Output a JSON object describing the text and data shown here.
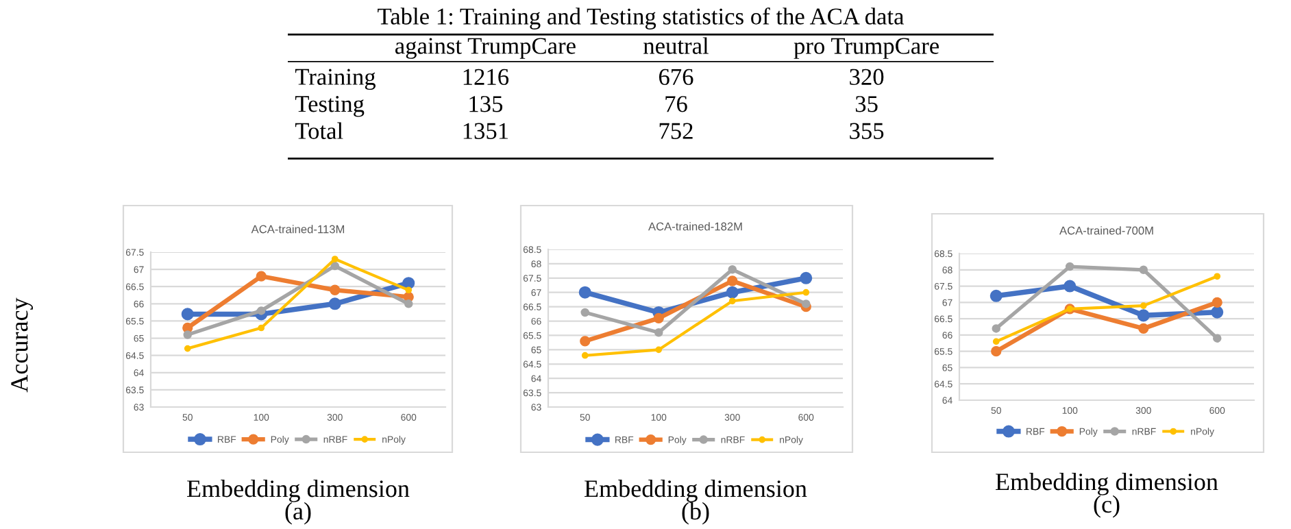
{
  "chart_data": [
    {
      "type": "other",
      "title": "Table 1: Training and Testing statistics of the ACA data",
      "categories": [
        "against TrumpCare",
        "neutral",
        "pro TrumpCare"
      ],
      "y_categories": [
        "Training",
        "Testing",
        "Total"
      ],
      "cell_labels": [
        [
          "1216",
          "676",
          "320"
        ],
        [
          "135",
          "76",
          "35"
        ],
        [
          "1351",
          "752",
          "355"
        ]
      ]
    },
    {
      "type": "line",
      "title": "ACA-trained-113M",
      "xlabel": "Embedding dimension\n(a)",
      "ylabel": "Accuracy",
      "categories": [
        "50",
        "100",
        "300",
        "600"
      ],
      "ylim": [
        63,
        67.5
      ],
      "yticks": [
        63,
        63.5,
        64,
        64.5,
        65,
        65.5,
        66,
        66.5,
        67,
        67.5
      ],
      "grid": "y",
      "legend": "bottom",
      "marker": "circle",
      "series": [
        {
          "name": "RBF",
          "color": "#4472c4",
          "values": [
            65.7,
            65.7,
            66.0,
            66.6
          ]
        },
        {
          "name": "Poly",
          "color": "#ed7d31",
          "values": [
            65.3,
            66.8,
            66.4,
            66.2
          ]
        },
        {
          "name": "nRBF",
          "color": "#a5a5a5",
          "values": [
            65.1,
            65.8,
            67.1,
            66.0
          ]
        },
        {
          "name": "nPoly",
          "color": "#ffc000",
          "values": [
            64.7,
            65.3,
            67.3,
            66.4
          ]
        }
      ]
    },
    {
      "type": "line",
      "title": "ACA-trained-182M",
      "xlabel": "Embedding dimension\n(b)",
      "categories": [
        "50",
        "100",
        "300",
        "600"
      ],
      "ylim": [
        63,
        68.5
      ],
      "yticks": [
        63,
        63.5,
        64,
        64.5,
        65,
        65.5,
        66,
        66.5,
        67,
        67.5,
        68,
        68.5
      ],
      "grid": "y",
      "legend": "bottom",
      "marker": "circle",
      "series": [
        {
          "name": "RBF",
          "color": "#4472c4",
          "values": [
            67.0,
            66.3,
            67.0,
            67.5
          ]
        },
        {
          "name": "Poly",
          "color": "#ed7d31",
          "values": [
            65.3,
            66.1,
            67.4,
            66.5
          ]
        },
        {
          "name": "nRBF",
          "color": "#a5a5a5",
          "values": [
            66.3,
            65.6,
            67.8,
            66.6
          ]
        },
        {
          "name": "nPoly",
          "color": "#ffc000",
          "values": [
            64.8,
            65.0,
            66.7,
            67.0
          ]
        }
      ]
    },
    {
      "type": "line",
      "title": "ACA-trained-700M",
      "xlabel": "Embedding dimension\n(c)",
      "categories": [
        "50",
        "100",
        "300",
        "600"
      ],
      "ylim": [
        64,
        68.5
      ],
      "yticks": [
        64,
        64.5,
        65,
        65.5,
        66,
        66.5,
        67,
        67.5,
        68,
        68.5
      ],
      "grid": "y",
      "legend": "bottom",
      "marker": "circle",
      "series": [
        {
          "name": "RBF",
          "color": "#4472c4",
          "values": [
            67.2,
            67.5,
            66.6,
            66.7
          ]
        },
        {
          "name": "Poly",
          "color": "#ed7d31",
          "values": [
            65.5,
            66.8,
            66.2,
            67.0
          ]
        },
        {
          "name": "nRBF",
          "color": "#a5a5a5",
          "values": [
            66.2,
            68.1,
            68.0,
            65.9
          ]
        },
        {
          "name": "nPoly",
          "color": "#ffc000",
          "values": [
            65.8,
            66.8,
            66.9,
            67.8
          ]
        }
      ]
    }
  ]
}
